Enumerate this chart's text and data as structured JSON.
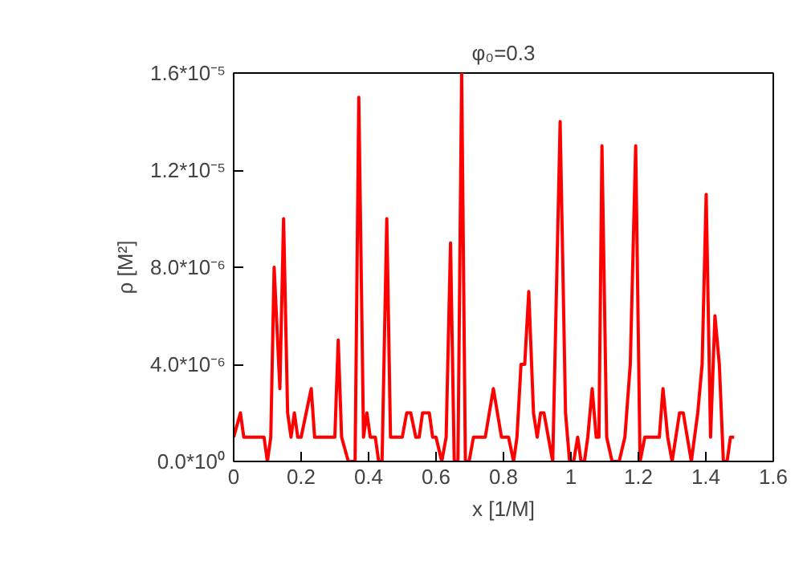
{
  "chart_data": {
    "type": "line",
    "title": "φ₀=0.3",
    "xlabel": "x [1/M]",
    "ylabel": "ρ [M²]",
    "x": [
      0,
      0.02,
      0.03,
      0.09,
      0.1,
      0.11,
      0.12,
      0.137,
      0.148,
      0.16,
      0.17,
      0.18,
      0.19,
      0.2,
      0.23,
      0.24,
      0.3,
      0.31,
      0.32,
      0.34,
      0.36,
      0.371,
      0.385,
      0.395,
      0.405,
      0.42,
      0.43,
      0.44,
      0.454,
      0.465,
      0.5,
      0.513,
      0.525,
      0.54,
      0.55,
      0.56,
      0.58,
      0.59,
      0.6,
      0.617,
      0.63,
      0.643,
      0.654,
      0.665,
      0.676,
      0.687,
      0.698,
      0.711,
      0.746,
      0.77,
      0.794,
      0.815,
      0.83,
      0.84,
      0.852,
      0.863,
      0.875,
      0.889,
      0.9,
      0.91,
      0.92,
      0.946,
      0.968,
      0.984,
      0.996,
      1.008,
      1.02,
      1.03,
      1.04,
      1.05,
      1.063,
      1.075,
      1.083,
      1.092,
      1.106,
      1.122,
      1.143,
      1.16,
      1.176,
      1.192,
      1.205,
      1.219,
      1.262,
      1.273,
      1.287,
      1.3,
      1.322,
      1.333,
      1.357,
      1.376,
      1.389,
      1.401,
      1.414,
      1.427,
      1.44,
      1.452,
      1.463,
      1.473,
      1.484
    ],
    "series": [
      {
        "color": "#ff0000",
        "values": [
          1e-06,
          2e-06,
          1e-06,
          1e-06,
          0,
          1e-06,
          8e-06,
          3e-06,
          1e-05,
          2e-06,
          1e-06,
          2e-06,
          1e-06,
          1e-06,
          3e-06,
          1e-06,
          1e-06,
          5e-06,
          1e-06,
          0,
          0,
          1.5e-05,
          1e-06,
          2e-06,
          1e-06,
          1e-06,
          0,
          0,
          1e-05,
          1e-06,
          1e-06,
          2e-06,
          2e-06,
          1e-06,
          1e-06,
          2e-06,
          2e-06,
          1e-06,
          1e-06,
          0,
          1e-06,
          9e-06,
          0,
          0,
          1.6e-05,
          0,
          0,
          1e-06,
          1e-06,
          3e-06,
          1e-06,
          1e-06,
          0,
          1e-06,
          4e-06,
          4e-06,
          7e-06,
          2e-06,
          1e-06,
          2e-06,
          2e-06,
          0,
          1.4e-05,
          2e-06,
          0,
          0,
          1e-06,
          0,
          0,
          1e-06,
          3e-06,
          1e-06,
          1e-06,
          1.3e-05,
          1e-06,
          0,
          0,
          1e-06,
          4e-06,
          1.3e-05,
          0,
          1e-06,
          1e-06,
          3e-06,
          1e-06,
          0,
          2e-06,
          2e-06,
          0,
          2e-06,
          4e-06,
          1.1e-05,
          1e-06,
          6e-06,
          4e-06,
          0,
          0,
          1e-06,
          1e-06
        ]
      }
    ],
    "xlim": [
      0,
      1.6
    ],
    "xticks": [
      0,
      0.2,
      0.4,
      0.6,
      0.8,
      1,
      1.2,
      1.4,
      1.6
    ],
    "ylim": [
      0,
      1.6e-05
    ],
    "yticks": [
      {
        "value": 0,
        "label": "0.0*10⁰"
      },
      {
        "value": 4e-06,
        "label": "4.0*10⁻⁶"
      },
      {
        "value": 8e-06,
        "label": "8.0*10⁻⁶"
      },
      {
        "value": 1.2e-05,
        "label": "1.2*10⁻⁵"
      },
      {
        "value": 1.6e-05,
        "label": "1.6*10⁻⁵"
      }
    ],
    "grid": false,
    "line_style": "solid",
    "marker": "none"
  }
}
